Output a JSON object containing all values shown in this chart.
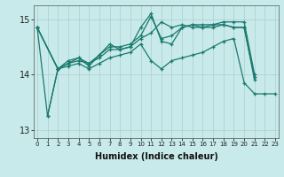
{
  "background_color": "#c8eaea",
  "grid_color": "#b0cccc",
  "line_color": "#1a7a6e",
  "xlabel": "Humidex (Indice chaleur)",
  "ylim": [
    12.85,
    15.25
  ],
  "xlim": [
    -0.3,
    23.3
  ],
  "yticks": [
    13,
    14,
    15
  ],
  "xticks": [
    0,
    1,
    2,
    3,
    4,
    5,
    6,
    7,
    8,
    9,
    10,
    11,
    12,
    13,
    14,
    15,
    16,
    17,
    18,
    19,
    20,
    21,
    22,
    23
  ],
  "line1": {
    "x": [
      0,
      2,
      3,
      4,
      5,
      6,
      7,
      8,
      9,
      10,
      11,
      12,
      13,
      14,
      15,
      16,
      17,
      18,
      19,
      20,
      21
    ],
    "y": [
      14.85,
      14.1,
      14.2,
      14.25,
      14.2,
      14.3,
      14.45,
      14.45,
      14.5,
      14.65,
      14.75,
      14.95,
      14.85,
      14.9,
      14.85,
      14.85,
      14.85,
      14.9,
      14.85,
      14.85,
      13.95
    ]
  },
  "line2": {
    "x": [
      0,
      2,
      3,
      4,
      5,
      6,
      7,
      8,
      9,
      10,
      11,
      12,
      13,
      14,
      15,
      16,
      17,
      18,
      19,
      20,
      21
    ],
    "y": [
      14.85,
      14.1,
      14.2,
      14.3,
      14.2,
      14.35,
      14.5,
      14.5,
      14.55,
      14.7,
      15.05,
      14.65,
      14.7,
      14.85,
      14.9,
      14.9,
      14.9,
      14.95,
      14.95,
      14.95,
      14.0
    ]
  },
  "line3": {
    "x": [
      0,
      2,
      3,
      4,
      5,
      6,
      7,
      8,
      9,
      10,
      11,
      12,
      13,
      14,
      15,
      16,
      17,
      18,
      19,
      20,
      21
    ],
    "y": [
      14.85,
      14.1,
      14.25,
      14.3,
      14.15,
      14.35,
      14.55,
      14.45,
      14.5,
      14.85,
      15.1,
      14.6,
      14.55,
      14.85,
      14.9,
      14.85,
      14.9,
      14.9,
      14.85,
      14.85,
      13.9
    ]
  },
  "line4": {
    "x": [
      0,
      1,
      2
    ],
    "y": [
      14.85,
      13.25,
      14.1
    ]
  },
  "line5": {
    "x": [
      1,
      2,
      3,
      4,
      5,
      6,
      7,
      8,
      9,
      10,
      11,
      12,
      13,
      14,
      15,
      16,
      17,
      18,
      19,
      20,
      21,
      22,
      23
    ],
    "y": [
      13.25,
      14.1,
      14.15,
      14.2,
      14.1,
      14.2,
      14.3,
      14.35,
      14.4,
      14.55,
      14.25,
      14.1,
      14.25,
      14.3,
      14.35,
      14.4,
      14.5,
      14.6,
      14.65,
      13.85,
      13.65,
      13.65,
      13.65
    ]
  }
}
